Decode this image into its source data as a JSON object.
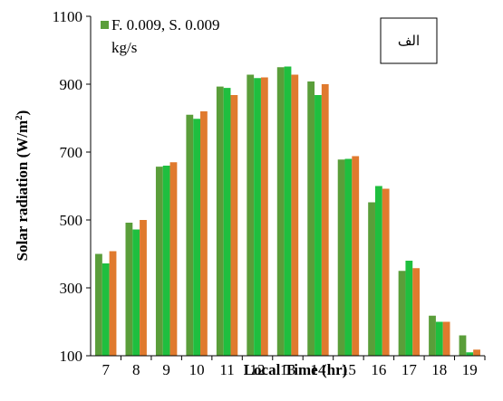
{
  "chart_data": {
    "type": "bar",
    "categories": [
      "7",
      "8",
      "9",
      "10",
      "11",
      "12",
      "13",
      "14",
      "15",
      "16",
      "17",
      "18",
      "19"
    ],
    "series": [
      {
        "name": "F. 0.009, S. 0.009",
        "color": "#5a9e3a",
        "values": [
          400,
          492,
          657,
          810,
          893,
          928,
          950,
          908,
          678,
          552,
          350,
          218,
          160
        ]
      },
      {
        "name": "",
        "color": "#1fbf3f",
        "values": [
          372,
          472,
          660,
          798,
          889,
          918,
          952,
          868,
          680,
          600,
          380,
          200,
          110
        ]
      },
      {
        "name": "",
        "color": "#e07a2e",
        "values": [
          408,
          500,
          670,
          820,
          868,
          920,
          928,
          900,
          688,
          592,
          358,
          200,
          118
        ]
      }
    ],
    "legend_unit": "kg/s",
    "xlabel": "Local Time (hr)",
    "ylabel": "Solar radiation (W/m²)",
    "ylim": [
      100,
      1100
    ],
    "yticks": [
      100,
      300,
      500,
      700,
      900,
      1100
    ],
    "badge": "الف",
    "grid": false
  }
}
